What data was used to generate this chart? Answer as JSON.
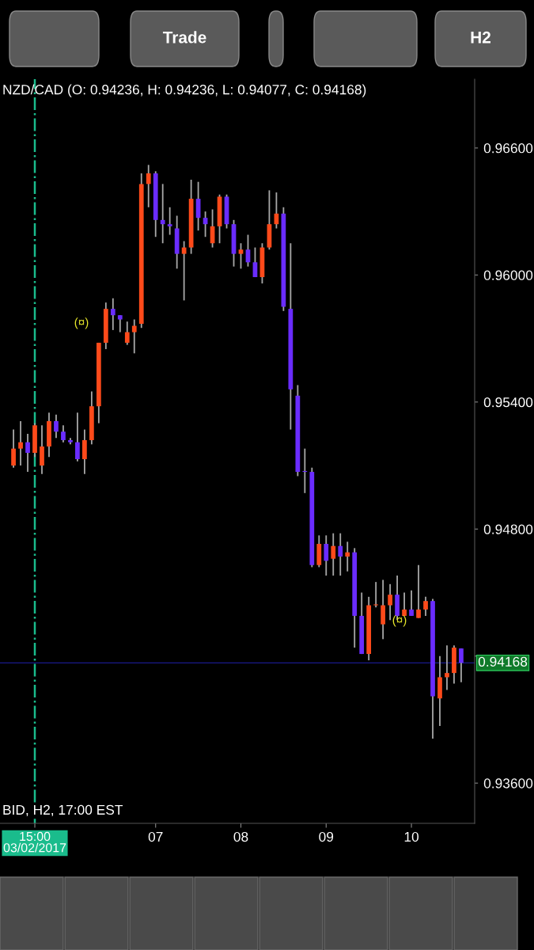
{
  "chart_data": {
    "type": "candlestick",
    "title": "NZD/CAD (O: 0.94236, H: 0.94236, L: 0.94077, C: 0.94168)",
    "categories": [
      null,
      null,
      null,
      "15:00\n03/02/2017",
      null,
      null,
      null,
      null,
      null,
      null,
      null,
      null,
      null,
      null,
      null,
      null,
      null,
      null,
      null,
      null,
      "07",
      null,
      null,
      null,
      null,
      null,
      null,
      null,
      null,
      null,
      null,
      null,
      "08",
      null,
      null,
      null,
      null,
      null,
      null,
      null,
      null,
      null,
      null,
      null,
      "09",
      null,
      null,
      null,
      null,
      null,
      null,
      null,
      null,
      null,
      null,
      null,
      "10",
      null,
      null,
      null,
      null,
      null,
      null,
      null
    ],
    "ohlc": [
      [
        0.951,
        0.9527,
        0.9509,
        0.9518
      ],
      [
        0.9518,
        0.9531,
        0.951,
        0.9521
      ],
      [
        0.9521,
        0.9525,
        0.9507,
        0.9516
      ],
      [
        0.9516,
        0.953,
        0.9514,
        0.9529
      ],
      [
        0.951,
        0.9529,
        0.9506,
        0.9519
      ],
      [
        0.9519,
        0.9535,
        0.9514,
        0.9531
      ],
      [
        0.9531,
        0.9534,
        0.9523,
        0.9526
      ],
      [
        0.9526,
        0.9529,
        0.9521,
        0.9522
      ],
      [
        0.9522,
        0.9523,
        0.952,
        0.9521
      ],
      [
        0.9521,
        0.9535,
        0.9512,
        0.9513
      ],
      [
        0.9513,
        0.9527,
        0.9506,
        0.9522
      ],
      [
        0.9522,
        0.9545,
        0.952,
        0.9538
      ],
      [
        0.9538,
        0.9568,
        0.953,
        0.9568
      ],
      [
        0.9568,
        0.9587,
        0.9565,
        0.9584
      ],
      [
        0.9584,
        0.9589,
        0.9574,
        0.9581
      ],
      [
        0.9581,
        0.9581,
        0.9573,
        0.9579
      ],
      [
        0.9568,
        0.9578,
        0.9567,
        0.9573
      ],
      [
        0.9573,
        0.9579,
        0.9563,
        0.9576
      ],
      [
        0.9577,
        0.9648,
        0.9575,
        0.9643
      ],
      [
        0.9643,
        0.9652,
        0.9632,
        0.9648
      ],
      [
        0.9648,
        0.9649,
        0.9618,
        0.9626
      ],
      [
        0.9626,
        0.9643,
        0.9615,
        0.9624
      ],
      [
        0.9624,
        0.9632,
        0.9619,
        0.9623
      ],
      [
        0.9622,
        0.9628,
        0.9603,
        0.961
      ],
      [
        0.961,
        0.9616,
        0.9588,
        0.9613
      ],
      [
        0.9613,
        0.9645,
        0.961,
        0.9636
      ],
      [
        0.9636,
        0.9644,
        0.9621,
        0.9627
      ],
      [
        0.9627,
        0.963,
        0.9618,
        0.9624
      ],
      [
        0.9615,
        0.9631,
        0.9613,
        0.9623
      ],
      [
        0.9623,
        0.9638,
        0.9615,
        0.9637
      ],
      [
        0.9637,
        0.9638,
        0.9622,
        0.9624
      ],
      [
        0.9624,
        0.9626,
        0.9604,
        0.961
      ],
      [
        0.961,
        0.9615,
        0.9603,
        0.9612
      ],
      [
        0.9612,
        0.9619,
        0.9604,
        0.9606
      ],
      [
        0.9606,
        0.9613,
        0.9599,
        0.9599
      ],
      [
        0.9599,
        0.9615,
        0.9596,
        0.9613
      ],
      [
        0.9613,
        0.964,
        0.9612,
        0.9624
      ],
      [
        0.9624,
        0.9639,
        0.9622,
        0.9629
      ],
      [
        0.9629,
        0.9632,
        0.9583,
        0.9585
      ],
      [
        0.9584,
        0.9615,
        0.9527,
        0.9546
      ],
      [
        0.9543,
        0.9548,
        0.9505,
        0.9507
      ],
      [
        0.9507,
        0.9518,
        0.9497,
        0.9507
      ],
      [
        0.9507,
        0.9509,
        0.9462,
        0.9463
      ],
      [
        0.9463,
        0.9477,
        0.9462,
        0.9473
      ],
      [
        0.9473,
        0.9477,
        0.9458,
        0.9465
      ],
      [
        0.9466,
        0.9478,
        0.9458,
        0.9472
      ],
      [
        0.9472,
        0.9478,
        0.9458,
        0.9467
      ],
      [
        0.9467,
        0.9474,
        0.946,
        0.9469
      ],
      [
        0.9469,
        0.9471,
        0.9424,
        0.9439
      ],
      [
        0.9439,
        0.945,
        0.9421,
        0.9421
      ],
      [
        0.9421,
        0.9448,
        0.9418,
        0.9444
      ],
      [
        0.9444,
        0.9455,
        0.9443,
        0.9444
      ],
      [
        0.9435,
        0.9456,
        0.9428,
        0.9444
      ],
      [
        0.9444,
        0.9454,
        0.9437,
        0.9449
      ],
      [
        0.9449,
        0.9458,
        0.9437,
        0.9439
      ],
      [
        0.9439,
        0.945,
        0.9439,
        0.9442
      ],
      [
        0.9442,
        0.9451,
        0.9439,
        0.9439
      ],
      [
        0.9438,
        0.9463,
        0.9438,
        0.9442
      ],
      [
        0.9442,
        0.9448,
        0.9439,
        0.9446
      ],
      [
        0.9446,
        0.9447,
        0.9381,
        0.9401
      ],
      [
        0.94,
        0.942,
        0.9387,
        0.941
      ],
      [
        0.941,
        0.9425,
        0.9404,
        0.9412
      ],
      [
        0.9412,
        0.9425,
        0.9407,
        0.9424
      ],
      [
        0.94236,
        0.94236,
        0.94077,
        0.94168
      ]
    ],
    "colors": [
      "#ff4a1a",
      "#ff4a1a",
      "#6a2cff",
      "#ff4a1a",
      "#ff4a1a",
      "#ff4a1a",
      "#6a2cff",
      "#6a2cff",
      "#6a2cff",
      "#6a2cff",
      "#ff4a1a",
      "#ff4a1a",
      "#ff4a1a",
      "#ff4a1a",
      "#6a2cff",
      "#6a2cff",
      "#ff4a1a",
      "#ff4a1a",
      "#ff4a1a",
      "#ff4a1a",
      "#6a2cff",
      "#6a2cff",
      "#6a2cff",
      "#6a2cff",
      "#ff4a1a",
      "#ff4a1a",
      "#6a2cff",
      "#6a2cff",
      "#ff4a1a",
      "#ff4a1a",
      "#6a2cff",
      "#6a2cff",
      "#ff4a1a",
      "#6a2cff",
      "#6a2cff",
      "#ff4a1a",
      "#ff4a1a",
      "#ff4a1a",
      "#6a2cff",
      "#6a2cff",
      "#6a2cff",
      "#6a2cff",
      "#6a2cff",
      "#ff4a1a",
      "#6a2cff",
      "#ff4a1a",
      "#6a2cff",
      "#ff4a1a",
      "#6a2cff",
      "#6a2cff",
      "#ff4a1a",
      "#ff4a1a",
      "#ff4a1a",
      "#ff4a1a",
      "#6a2cff",
      "#ff4a1a",
      "#6a2cff",
      "#ff4a1a",
      "#ff4a1a",
      "#6a2cff",
      "#ff4a1a",
      "#ff4a1a",
      "#ff4a1a",
      "#6a2cff"
    ],
    "ylim": [
      0.9341,
      0.96925
    ],
    "yticks": [
      {
        "value": 0.936,
        "label": "0.93600"
      },
      {
        "value": 0.942,
        "label": null
      },
      {
        "value": 0.948,
        "label": "0.94800"
      },
      {
        "value": 0.954,
        "label": "0.95400"
      },
      {
        "value": 0.96,
        "label": "0.96000"
      },
      {
        "value": 0.966,
        "label": "0.96600"
      }
    ],
    "ref_lines": [
      {
        "axis": "x",
        "value": "15:00\n03/02/2017",
        "color": "#1abc8c",
        "line_style": "dashdot"
      },
      {
        "axis": "y",
        "value": 0.94168,
        "label": "0.94168",
        "color": "#2020b0",
        "line_style": "solid"
      }
    ],
    "annotations": [
      "BID, H2, 17:00 EST",
      "(¤)",
      "(¤)",
      "Trade",
      "H2"
    ],
    "grid": false
  }
}
